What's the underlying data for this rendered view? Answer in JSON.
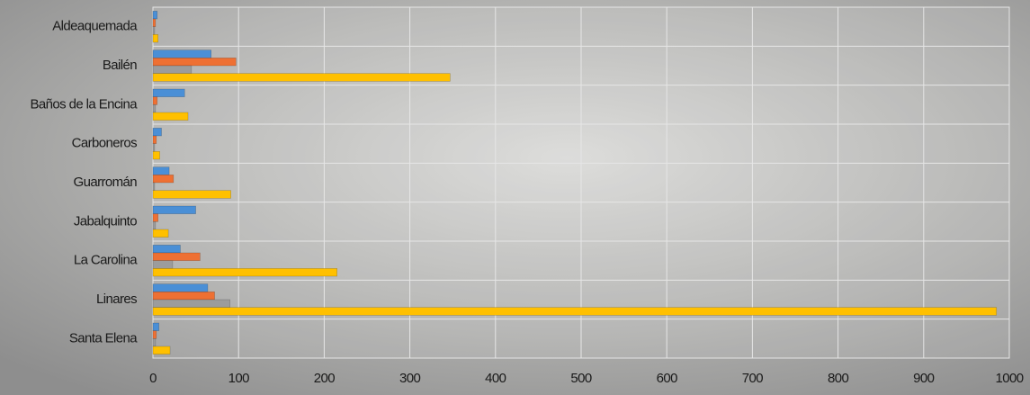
{
  "chart_data": {
    "type": "bar",
    "orientation": "horizontal",
    "categories": [
      "Aldeaquemada",
      "Bailén",
      "Baños de la Encina",
      "Carboneros",
      "Guarromán",
      "Jabalquinto",
      "La Carolina",
      "Linares",
      "Santa Elena"
    ],
    "series": [
      {
        "color": "#4a8fd6",
        "values": [
          5,
          68,
          37,
          10,
          19,
          50,
          32,
          64,
          7
        ]
      },
      {
        "color": "#ee7033",
        "values": [
          3,
          97,
          5,
          4,
          24,
          6,
          55,
          72,
          4
        ]
      },
      {
        "color": "#9c9c9c",
        "values": [
          2,
          45,
          3,
          2,
          2,
          3,
          23,
          90,
          3
        ]
      },
      {
        "color": "#ffc000",
        "values": [
          6,
          347,
          41,
          8,
          91,
          18,
          215,
          985,
          20
        ]
      }
    ],
    "xlim": [
      0,
      1000
    ],
    "xticks": [
      0,
      100,
      200,
      300,
      400,
      500,
      600,
      700,
      800,
      900,
      1000
    ],
    "grid": true
  }
}
